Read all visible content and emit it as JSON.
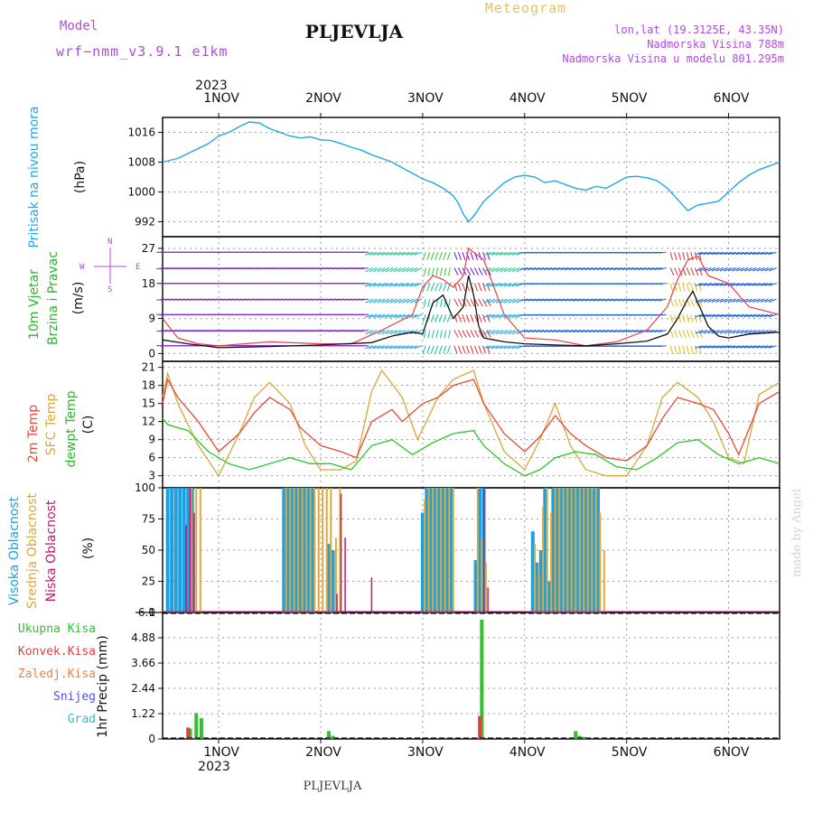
{
  "header": {
    "model_label": "Model",
    "model_name": "wrf−nmm_v3.9.1  e1km",
    "station": "PLJEVLJA",
    "meteogram": "Meteogram",
    "lonlat": "lon,lat (19.3125E, 43.35N)",
    "altitude": "Nadmorska Visina 788m",
    "model_altitude": "Nadmorska Visina u modelu 801.295m"
  },
  "x_axis": {
    "year": "2023",
    "ticks": [
      "1NOV",
      "2NOV",
      "3NOV",
      "4NOV",
      "5NOV",
      "6NOV"
    ],
    "tick_days": [
      1,
      2,
      3,
      4,
      5,
      6
    ],
    "range_days": [
      0.45,
      6.5
    ]
  },
  "footer": {
    "station": "PLJEVLJA",
    "watermark": "made by Angel"
  },
  "colors": {
    "pressure": "#1ea8e8",
    "wind": "#111111",
    "gust": "#e84040",
    "t2m": "#e84838",
    "sfc": "#d8a838",
    "dewpt": "#28c828",
    "high_cloud": "#1ea0e0",
    "mid_cloud": "#e0a838",
    "low_cloud": "#c01870",
    "total_rain": "#30c030",
    "conv_rain": "#e04040",
    "frozen_rain": "#f08040",
    "snow": "#5050e0",
    "graupel": "#30c0c0"
  },
  "chart_data": [
    {
      "type": "line",
      "panel": "pressure",
      "ylabel": [
        "Pritisak na nivou mora",
        "(hPa)"
      ],
      "yticks": [
        992,
        1000,
        1008,
        1016
      ],
      "ylim": [
        988,
        1020
      ],
      "series": [
        {
          "x": [
            0.45,
            0.6,
            0.75,
            0.9,
            1.0,
            1.1,
            1.2,
            1.3,
            1.4,
            1.5,
            1.6,
            1.7,
            1.8,
            1.9,
            2.0,
            2.1,
            2.2,
            2.3,
            2.4,
            2.5,
            2.6,
            2.7,
            2.8,
            2.9,
            3.0,
            3.1,
            3.2,
            3.3,
            3.35,
            3.4,
            3.45,
            3.5,
            3.6,
            3.7,
            3.8,
            3.9,
            4.0,
            4.1,
            4.2,
            4.3,
            4.4,
            4.5,
            4.6,
            4.7,
            4.8,
            4.9,
            5.0,
            5.1,
            5.2,
            5.3,
            5.4,
            5.5,
            5.6,
            5.7,
            5.8,
            5.9,
            6.0,
            6.1,
            6.2,
            6.3,
            6.5
          ],
          "y": [
            1008,
            1009,
            1011,
            1013,
            1015,
            1016,
            1017.5,
            1018.8,
            1018.5,
            1017,
            1016,
            1015,
            1014.5,
            1014.8,
            1014,
            1013.8,
            1013,
            1012,
            1011.2,
            1010,
            1009,
            1008,
            1006.5,
            1005,
            1003.5,
            1002.5,
            1001,
            999,
            997,
            994,
            992,
            993.5,
            997.5,
            1000,
            1002.5,
            1004,
            1004.5,
            1004,
            1002.5,
            1003,
            1002,
            1001,
            1000.5,
            1001.5,
            1001,
            1002.5,
            1004,
            1004.2,
            1003.8,
            1003,
            1001,
            998,
            995,
            996.5,
            997,
            997.5,
            1000,
            1002.5,
            1004.5,
            1006,
            1008
          ]
        }
      ]
    },
    {
      "type": "line",
      "panel": "wind",
      "ylabel": [
        "10m Vjetar",
        "Brzina i Pravac",
        "(m/s)"
      ],
      "yticks": [
        0,
        9,
        18,
        27
      ],
      "ylim": [
        -2,
        30
      ],
      "compass": [
        "W",
        "E",
        "N",
        "S"
      ],
      "series": [
        {
          "name": "speed",
          "x": [
            0.45,
            0.7,
            1.0,
            1.5,
            2.0,
            2.5,
            2.7,
            2.9,
            3.0,
            3.05,
            3.1,
            3.2,
            3.3,
            3.4,
            3.45,
            3.5,
            3.55,
            3.6,
            3.7,
            3.8,
            4.0,
            4.3,
            4.6,
            4.9,
            5.2,
            5.4,
            5.5,
            5.6,
            5.65,
            5.7,
            5.8,
            5.9,
            6.0,
            6.2,
            6.5
          ],
          "y": [
            3.5,
            2.5,
            1.5,
            1.8,
            2.2,
            2.8,
            4.5,
            5.5,
            5,
            9,
            13,
            15,
            9,
            12,
            20,
            15,
            7,
            4,
            3.5,
            3,
            2.5,
            2.2,
            2,
            2.5,
            3.2,
            5,
            9,
            14,
            16,
            13,
            7,
            4.5,
            4,
            5,
            5.5
          ]
        },
        {
          "name": "gust",
          "x": [
            0.45,
            0.6,
            0.8,
            1.0,
            1.5,
            2.0,
            2.3,
            2.6,
            2.9,
            3.0,
            3.1,
            3.2,
            3.3,
            3.4,
            3.45,
            3.5,
            3.6,
            3.8,
            4.0,
            4.3,
            4.6,
            4.9,
            5.2,
            5.4,
            5.5,
            5.6,
            5.7,
            5.8,
            6.0,
            6.2,
            6.5
          ],
          "y": [
            9,
            4,
            2.5,
            2,
            3,
            2.5,
            2.5,
            6,
            10,
            17,
            20,
            19,
            17,
            20,
            27,
            26,
            24,
            10,
            4,
            3.5,
            2,
            3,
            6,
            12,
            19,
            24,
            25,
            20,
            18,
            12,
            10
          ]
        }
      ]
    },
    {
      "type": "line",
      "panel": "temperature",
      "ylabel": [
        "2m Temp",
        "SFC Temp",
        "dewpt Temp",
        "(C)"
      ],
      "yticks": [
        3,
        6,
        9,
        12,
        15,
        18,
        21
      ],
      "ylim": [
        1,
        22
      ],
      "series": [
        {
          "name": "2m Temp",
          "x": [
            0.45,
            0.5,
            0.6,
            0.8,
            1.0,
            1.2,
            1.35,
            1.5,
            1.7,
            1.8,
            2.0,
            2.2,
            2.35,
            2.5,
            2.7,
            2.8,
            3.0,
            3.15,
            3.3,
            3.5,
            3.6,
            3.8,
            4.0,
            4.15,
            4.3,
            4.45,
            4.6,
            4.8,
            5.0,
            5.2,
            5.35,
            5.5,
            5.7,
            5.85,
            6.0,
            6.1,
            6.3,
            6.5
          ],
          "y": [
            15,
            19,
            16,
            12,
            7,
            10,
            13.5,
            16,
            14,
            11,
            8,
            7,
            6,
            12,
            14,
            12,
            15,
            16,
            18,
            19,
            15,
            10,
            7,
            9.5,
            13,
            10,
            8,
            6,
            5.5,
            8,
            12.5,
            16,
            15,
            14,
            10,
            6.5,
            15,
            17
          ]
        },
        {
          "name": "SFC Temp",
          "x": [
            0.45,
            0.5,
            0.6,
            0.8,
            1.0,
            1.2,
            1.35,
            1.5,
            1.7,
            1.85,
            2.0,
            2.2,
            2.35,
            2.5,
            2.6,
            2.8,
            2.95,
            3.15,
            3.3,
            3.5,
            3.6,
            3.8,
            4.0,
            4.15,
            4.3,
            4.45,
            4.6,
            4.8,
            5.0,
            5.2,
            5.35,
            5.5,
            5.7,
            5.85,
            6.0,
            6.15,
            6.3,
            6.5
          ],
          "y": [
            16,
            20,
            15,
            8,
            3,
            10,
            16,
            18.5,
            15,
            8,
            4,
            4,
            5.5,
            17,
            20.5,
            16,
            9,
            16,
            19,
            20.5,
            15,
            7,
            4,
            9,
            15,
            8,
            4,
            3,
            3,
            8,
            16,
            18.5,
            16,
            12,
            6,
            5,
            16.5,
            18.5
          ]
        },
        {
          "name": "dewpt Temp",
          "x": [
            0.45,
            0.5,
            0.7,
            0.9,
            1.1,
            1.3,
            1.5,
            1.7,
            1.9,
            2.1,
            2.3,
            2.5,
            2.7,
            2.9,
            3.1,
            3.3,
            3.5,
            3.6,
            3.8,
            4.0,
            4.15,
            4.3,
            4.5,
            4.7,
            4.9,
            5.1,
            5.3,
            5.5,
            5.7,
            5.9,
            6.1,
            6.3,
            6.5
          ],
          "y": [
            12.5,
            11.5,
            10.5,
            7,
            5,
            4,
            5,
            6,
            5,
            5,
            4,
            8,
            9,
            6.5,
            8.5,
            10,
            10.5,
            8,
            5,
            3,
            4,
            6,
            7,
            6.5,
            4.5,
            4,
            6,
            8.5,
            9,
            6.5,
            5,
            6,
            5
          ]
        }
      ]
    },
    {
      "type": "bar",
      "panel": "clouds",
      "ylabel": [
        "Visoka Oblacnost",
        "Srednja Oblacnost",
        "Niska Oblacnost",
        "(%)"
      ],
      "yticks": [
        0,
        25,
        50,
        75,
        100
      ],
      "ylim": [
        0,
        100
      ],
      "bar_width_days": 0.025,
      "series": [
        {
          "name": "Visoka Oblacnost",
          "x": [
            0.5,
            0.54,
            0.58,
            0.62,
            0.66,
            0.7,
            0.74,
            1.64,
            1.68,
            1.72,
            1.76,
            1.8,
            1.84,
            1.88,
            1.92,
            2.08,
            2.12,
            3.0,
            3.04,
            3.08,
            3.12,
            3.16,
            3.2,
            3.24,
            3.28,
            3.52,
            3.56,
            3.6,
            4.08,
            4.12,
            4.16,
            4.2,
            4.24,
            4.28,
            4.32,
            4.36,
            4.4,
            4.44,
            4.48,
            4.52,
            4.56,
            4.6,
            4.64,
            4.68,
            4.72
          ],
          "y": [
            100,
            100,
            100,
            100,
            100,
            100,
            100,
            100,
            100,
            100,
            100,
            100,
            100,
            100,
            100,
            55,
            50,
            80,
            100,
            100,
            100,
            100,
            100,
            100,
            100,
            42,
            100,
            100,
            65,
            40,
            50,
            100,
            25,
            100,
            100,
            100,
            100,
            100,
            100,
            100,
            100,
            100,
            100,
            100,
            100
          ]
        },
        {
          "name": "Srednja Oblacnost",
          "x": [
            0.73,
            0.78,
            0.82,
            1.66,
            1.7,
            1.74,
            1.78,
            1.82,
            1.86,
            1.9,
            1.94,
            1.98,
            2.02,
            2.06,
            2.1,
            2.15,
            2.19,
            3.02,
            3.06,
            3.1,
            3.14,
            3.18,
            3.22,
            3.26,
            3.3,
            3.54,
            3.58,
            3.62,
            4.1,
            4.14,
            4.18,
            4.22,
            4.26,
            4.3,
            4.34,
            4.38,
            4.42,
            4.46,
            4.5,
            4.54,
            4.58,
            4.62,
            4.66,
            4.7,
            4.74,
            4.78
          ],
          "y": [
            100,
            100,
            100,
            100,
            100,
            100,
            100,
            100,
            100,
            100,
            100,
            100,
            100,
            100,
            100,
            60,
            100,
            90,
            100,
            100,
            100,
            100,
            100,
            100,
            100,
            100,
            60,
            40,
            55,
            30,
            85,
            100,
            80,
            100,
            100,
            100,
            100,
            100,
            100,
            100,
            100,
            100,
            100,
            100,
            80,
            50
          ]
        },
        {
          "name": "Niska Oblacnost",
          "x": [
            0.68,
            0.72,
            0.76,
            2.16,
            2.2,
            2.24,
            2.5,
            3.6,
            3.64
          ],
          "y": [
            70,
            100,
            80,
            15,
            95,
            60,
            28,
            100,
            20
          ]
        }
      ]
    },
    {
      "type": "bar",
      "panel": "precip",
      "ylabel": [
        "1hr Precip (mm)"
      ],
      "legend": [
        "Ukupna Kisa",
        "Konvek.Kisa",
        "Zaledj.Kisa",
        "Snijeg",
        "Grad"
      ],
      "yticks": [
        0,
        1.22,
        2.44,
        3.66,
        4.88,
        6.1
      ],
      "ylim": [
        0,
        6.1
      ],
      "bar_width_days": 0.025,
      "series": [
        {
          "name": "Ukupna Kisa",
          "x": [
            0.72,
            0.78,
            0.83,
            2.08,
            2.12,
            3.58,
            4.5,
            4.54,
            4.58
          ],
          "y": [
            0.5,
            1.25,
            1.0,
            0.38,
            0.15,
            5.75,
            0.38,
            0.15,
            0.1
          ]
        },
        {
          "name": "Konvek.Kisa",
          "x": [
            0.7,
            3.56
          ],
          "y": [
            0.55,
            1.1
          ]
        }
      ]
    }
  ]
}
